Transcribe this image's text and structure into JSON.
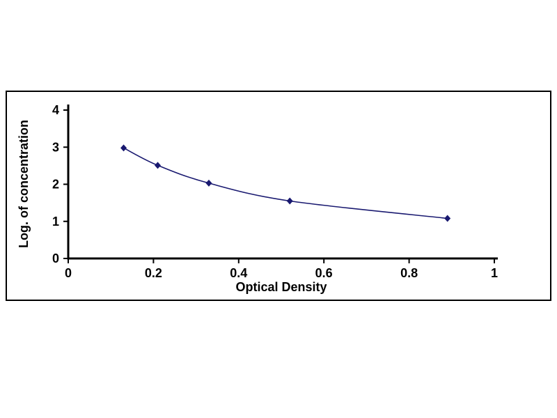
{
  "chart_data": {
    "type": "line",
    "title": "",
    "xlabel": "Optical Density",
    "ylabel": "Log. of concentration",
    "x": [
      0.13,
      0.21,
      0.33,
      0.52,
      0.89
    ],
    "y": [
      2.98,
      2.51,
      2.03,
      1.55,
      1.08
    ],
    "xlim": [
      0,
      1
    ],
    "ylim": [
      0,
      4
    ],
    "x_ticks": [
      0,
      0.2,
      0.4,
      0.6,
      0.8,
      1
    ],
    "y_ticks": [
      0,
      1,
      2,
      3,
      4
    ],
    "grid": false,
    "legend": false,
    "marker": "diamond",
    "axis_color": "#000000",
    "line_color": "#191970",
    "marker_color": "#191970",
    "background_color": "#ffffff"
  }
}
